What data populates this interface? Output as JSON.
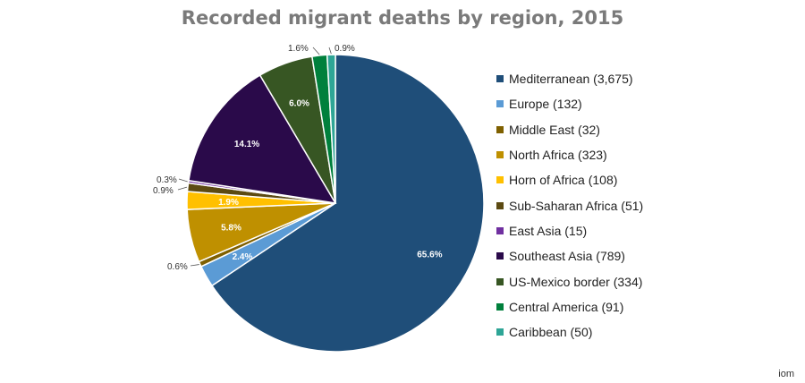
{
  "chart_data": {
    "type": "pie",
    "title": "Recorded migrant deaths by region, 2015",
    "slices": [
      {
        "label": "Mediterranean (3,675)",
        "value": 3675,
        "percent_label": "65.6%",
        "color": "#1f4e79",
        "label_pos": "inside"
      },
      {
        "label": "Europe (132)",
        "value": 132,
        "percent_label": "2.4%",
        "color": "#5b9bd5",
        "label_pos": "inside"
      },
      {
        "label": "Middle East (32)",
        "value": 32,
        "percent_label": "0.6%",
        "color": "#7f6000",
        "label_pos": "outside"
      },
      {
        "label": "North Africa (323)",
        "value": 323,
        "percent_label": "5.8%",
        "color": "#bf9000",
        "label_pos": "inside"
      },
      {
        "label": "Horn of Africa (108)",
        "value": 108,
        "percent_label": "1.9%",
        "color": "#ffc000",
        "label_pos": "inside"
      },
      {
        "label": "Sub-Saharan Africa (51)",
        "value": 51,
        "percent_label": "0.9%",
        "color": "#5c4a12",
        "label_pos": "outside"
      },
      {
        "label": "East Asia (15)",
        "value": 15,
        "percent_label": "0.3%",
        "color": "#7030a0",
        "label_pos": "outside"
      },
      {
        "label": "Southeast Asia (789)",
        "value": 789,
        "percent_label": "14.1%",
        "color": "#2a0a4a",
        "label_pos": "inside"
      },
      {
        "label": "US-Mexico border (334)",
        "value": 334,
        "percent_label": "6.0%",
        "color": "#375623",
        "label_pos": "inside"
      },
      {
        "label": "Central America (91)",
        "value": 91,
        "percent_label": "1.6%",
        "color": "#00803c",
        "label_pos": "outside"
      },
      {
        "label": "Caribbean (50)",
        "value": 50,
        "percent_label": "0.9%",
        "color": "#2ea596",
        "label_pos": "outside"
      }
    ],
    "legend_position": "right",
    "start_angle_deg": 0,
    "direction": "clockwise"
  },
  "source": "iom"
}
